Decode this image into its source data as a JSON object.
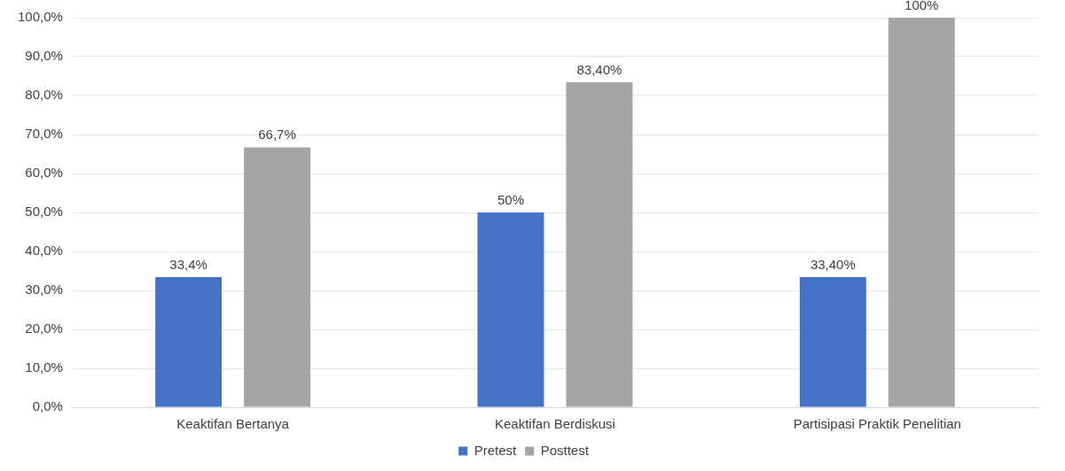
{
  "chart_data": {
    "type": "bar",
    "categories": [
      "Keaktifan Bertanya",
      "Keaktifan Berdiskusi",
      "Partisipasi Praktik Penelitian"
    ],
    "series": [
      {
        "name": "Pretest",
        "color": "#4472c4",
        "values": [
          33.4,
          50,
          33.4
        ],
        "value_labels": [
          "33,4%",
          "50%",
          "33,40%"
        ]
      },
      {
        "name": "Posttest",
        "color": "#a5a5a5",
        "values": [
          66.7,
          83.4,
          100
        ],
        "value_labels": [
          "66,7%",
          "83,40%",
          "100%"
        ]
      }
    ],
    "ylim": [
      0,
      100
    ],
    "yticks": [
      {
        "value": 0,
        "label": "0,0%"
      },
      {
        "value": 10,
        "label": "10,0%"
      },
      {
        "value": 20,
        "label": "20,0%"
      },
      {
        "value": 30,
        "label": "30,0%"
      },
      {
        "value": 40,
        "label": "40,0%"
      },
      {
        "value": 50,
        "label": "50,0%"
      },
      {
        "value": 60,
        "label": "60,0%"
      },
      {
        "value": 70,
        "label": "70,0%"
      },
      {
        "value": 80,
        "label": "80,0%"
      },
      {
        "value": 90,
        "label": "90,0%"
      },
      {
        "value": 100,
        "label": "100,0%"
      }
    ],
    "grid": "y",
    "legend": "bottom"
  }
}
